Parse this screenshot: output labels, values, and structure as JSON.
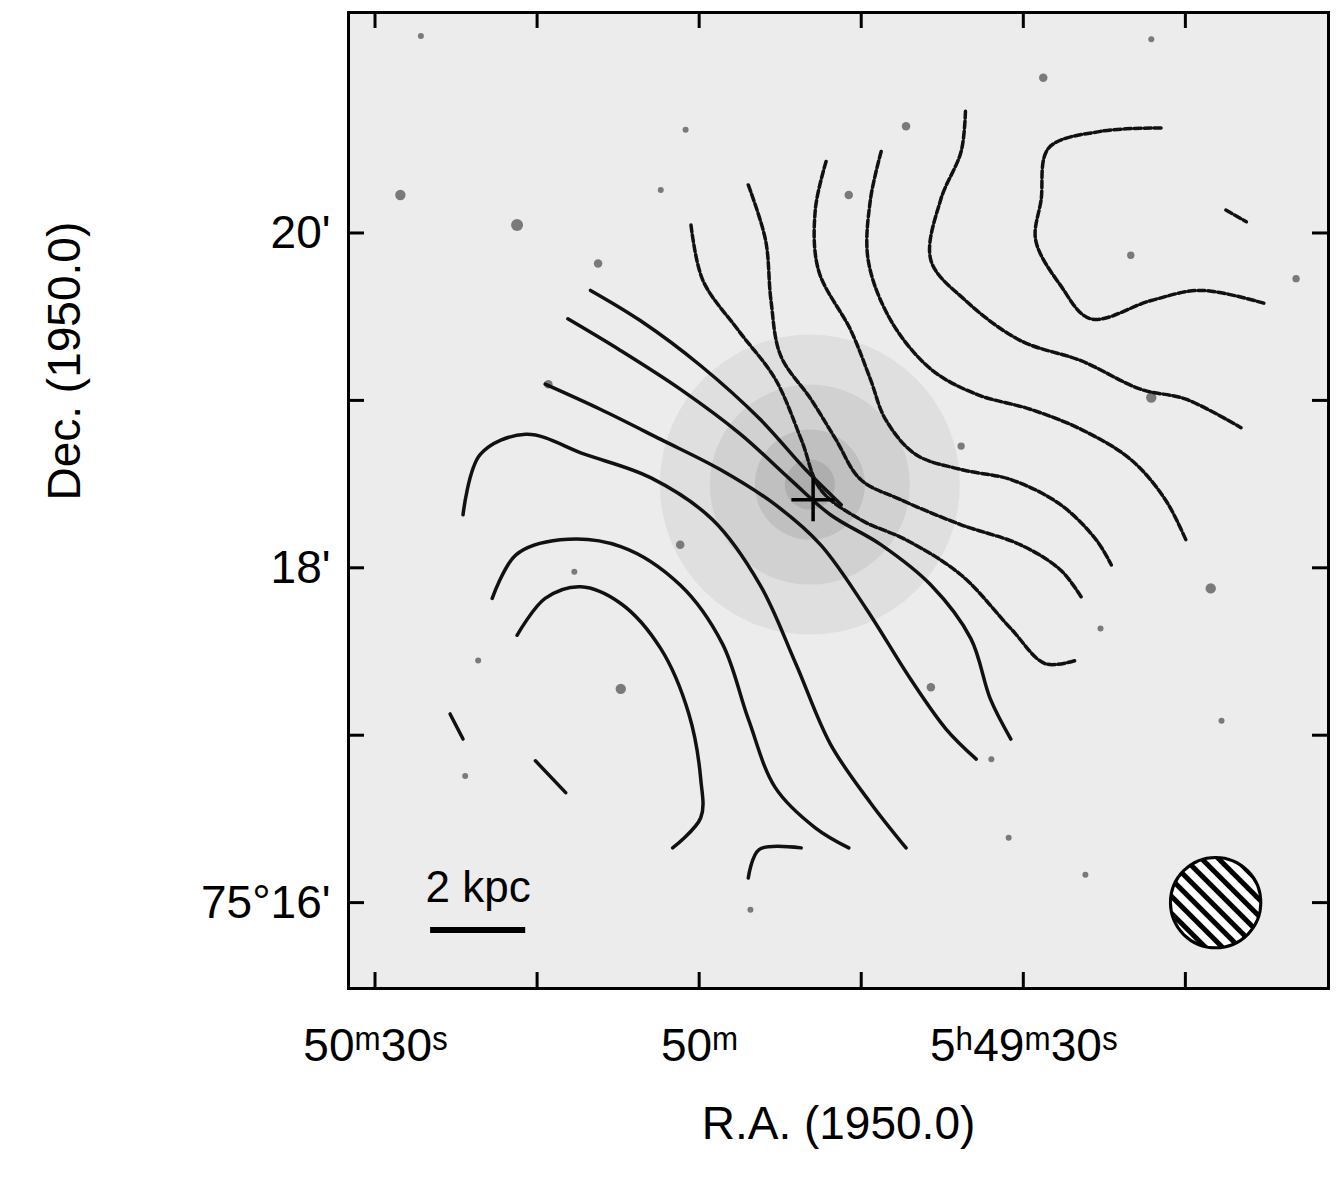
{
  "chart_data": {
    "type": "contour",
    "xlabel": "R.A. (1950.0)",
    "ylabel": "Dec. (1950.0)",
    "xlim": [
      92.5,
      1.8
    ],
    "ylim": [
      15.49,
      21.32
    ],
    "xticks": [
      {
        "value": 90,
        "label": "50ᵐ30ˢ"
      },
      {
        "value": 75,
        "label": null
      },
      {
        "value": 60,
        "label": "50ᵐ"
      },
      {
        "value": 45,
        "label": null
      },
      {
        "value": 30,
        "label": "5ʰ49ᵐ30ˢ"
      },
      {
        "value": 15,
        "label": null
      }
    ],
    "yticks": [
      {
        "value": 16,
        "label": "75°16'"
      },
      {
        "value": 17,
        "label": null
      },
      {
        "value": 18,
        "label": "18'"
      },
      {
        "value": 19,
        "label": null
      },
      {
        "value": 20,
        "label": "20'"
      }
    ],
    "contours": [
      {
        "line_style": "solid",
        "x": [
          76.9,
          74.3,
          71.0,
          67.3,
          63.6,
          61.0,
          59.9,
          59.9,
          62.5
        ],
        "y": [
          17.6,
          17.82,
          17.89,
          17.79,
          17.52,
          17.13,
          16.74,
          16.51,
          16.33
        ]
      },
      {
        "line_style": "solid",
        "x": [
          79.2,
          77.0,
          72.9,
          67.3,
          61.8,
          57.9,
          55.5,
          53.0,
          49.3,
          46.2
        ],
        "y": [
          17.82,
          18.08,
          18.17,
          18.13,
          17.9,
          17.55,
          17.1,
          16.69,
          16.45,
          16.33
        ]
      },
      {
        "line_style": "solid",
        "x": [
          81.9,
          80.3,
          76.1,
          70.6,
          64.5,
          58.8,
          54.4,
          51.1,
          47.9,
          44.2,
          40.9
        ],
        "y": [
          18.32,
          18.68,
          18.8,
          18.68,
          18.54,
          18.29,
          17.9,
          17.43,
          16.95,
          16.6,
          16.33
        ]
      },
      {
        "line_style": "solid",
        "x": [
          74.3,
          69.2,
          63.6,
          58.1,
          53.0,
          48.8,
          44.6,
          40.5,
          37.2,
          34.4
        ],
        "y": [
          19.1,
          18.95,
          18.77,
          18.59,
          18.38,
          18.14,
          17.76,
          17.34,
          17.04,
          16.86
        ]
      },
      {
        "line_style": "solid",
        "x": [
          72.2,
          67.3,
          61.8,
          56.2,
          51.6,
          47.9,
          43.2,
          38.6,
          34.9,
          33.1,
          31.2
        ],
        "y": [
          19.49,
          19.3,
          19.07,
          18.8,
          18.53,
          18.32,
          18.14,
          17.9,
          17.58,
          17.22,
          16.98
        ]
      },
      {
        "line_style": "solid",
        "x": [
          70.1,
          65.5,
          59.9,
          54.4,
          50.2,
          46.9
        ],
        "y": [
          19.66,
          19.48,
          19.21,
          18.89,
          18.59,
          18.38
        ]
      },
      {
        "line_style": "solid",
        "x": [
          83.1,
          81.9
        ],
        "y": [
          17.13,
          16.98
        ]
      },
      {
        "line_style": "solid",
        "x": [
          75.2,
          72.4
        ],
        "y": [
          16.85,
          16.66
        ]
      },
      {
        "line_style": "solid",
        "x": [
          55.5,
          54.5,
          50.6
        ],
        "y": [
          16.15,
          16.32,
          16.33
        ]
      },
      {
        "line_style": "dashed",
        "x": [
          60.8,
          59.7,
          56.4,
          53.0,
          50.6,
          48.8,
          45.1,
          40.9,
          35.8,
          31.2,
          28.0,
          25.2
        ],
        "y": [
          20.05,
          19.72,
          19.42,
          19.13,
          18.77,
          18.47,
          18.29,
          18.17,
          17.96,
          17.64,
          17.43,
          17.45
        ]
      },
      {
        "line_style": "dashed",
        "x": [
          55.5,
          53.9,
          53.4,
          52.5,
          49.7,
          47.4,
          45.1,
          41.4,
          35.8,
          30.3,
          26.6,
          24.7
        ],
        "y": [
          20.29,
          19.96,
          19.6,
          19.27,
          19.01,
          18.77,
          18.53,
          18.41,
          18.26,
          18.14,
          17.99,
          17.83
        ]
      },
      {
        "line_style": "dashed",
        "x": [
          48.3,
          49.3,
          49.0,
          46.0,
          44.2,
          42.8,
          40.0,
          35.8,
          31.2,
          26.6,
          23.3,
          21.9
        ],
        "y": [
          20.43,
          20.14,
          19.78,
          19.42,
          19.13,
          18.89,
          18.68,
          18.59,
          18.53,
          18.38,
          18.17,
          18.02
        ]
      },
      {
        "line_style": "dashed",
        "x": [
          43.2,
          44.2,
          44.4,
          42.3,
          38.6,
          34.4,
          29.4,
          24.7,
          20.1,
          16.9,
          15.0
        ],
        "y": [
          20.49,
          20.2,
          19.84,
          19.48,
          19.19,
          19.04,
          18.95,
          18.83,
          18.65,
          18.41,
          18.17
        ]
      },
      {
        "line_style": "dashed",
        "x": [
          35.4,
          35.8,
          37.7,
          38.6,
          35.4,
          30.3,
          24.7,
          19.2,
          15.0,
          9.9
        ],
        "y": [
          20.73,
          20.49,
          20.2,
          19.84,
          19.6,
          19.36,
          19.24,
          19.07,
          19.01,
          18.84
        ]
      },
      {
        "line_style": "dashed",
        "x": [
          17.3,
          22.9,
          27.7,
          28.4,
          28.9,
          26.6,
          23.8,
          18.2,
          13.6,
          7.6
        ],
        "y": [
          20.63,
          20.61,
          20.51,
          20.2,
          19.96,
          19.69,
          19.49,
          19.6,
          19.66,
          19.58
        ]
      },
      {
        "line_style": "dashed",
        "x": [
          11.3,
          9.4
        ],
        "y": [
          20.14,
          20.07
        ]
      }
    ],
    "stars": {
      "x": [
        87.7,
        76.9,
        69.4,
        74.0,
        46.2,
        28.2,
        18.2,
        12.7,
        67.3,
        38.6,
        61.8,
        40.9,
        35.8,
        20.1,
        4.8,
        61.3,
        85.8,
        18.2,
        80.5,
        22.9,
        24.3,
        11.7,
        31.4,
        81.7,
        55.3,
        71.6,
        33.0,
        63.6
      ],
      "y": [
        20.23,
        20.05,
        19.82,
        19.1,
        20.23,
        20.93,
        19.02,
        17.88,
        17.28,
        17.29,
        18.14,
        20.64,
        18.73,
        19.87,
        19.73,
        20.62,
        21.18,
        21.16,
        17.45,
        17.64,
        16.17,
        17.09,
        16.39,
        16.76,
        15.96,
        17.98,
        16.86,
        20.26
      ],
      "sizes": [
        3,
        4,
        2,
        2,
        2,
        2,
        3,
        3,
        3,
        2,
        2,
        2,
        1.5,
        1.5,
        1.5,
        1,
        1,
        1,
        1,
        1,
        1,
        1,
        1,
        1,
        1,
        1,
        1,
        1
      ]
    },
    "galaxy": {
      "x": 49.8,
      "y": 18.5
    },
    "center": {
      "x": 49.5,
      "y": 18.41,
      "marker": "plus"
    },
    "scale_bar": {
      "label": "2 kpc",
      "x1": 84.9,
      "x2": 76.1,
      "y": 15.84
    },
    "beam": {
      "x": 12.2,
      "y": 16.0,
      "radius": 0.27
    }
  }
}
